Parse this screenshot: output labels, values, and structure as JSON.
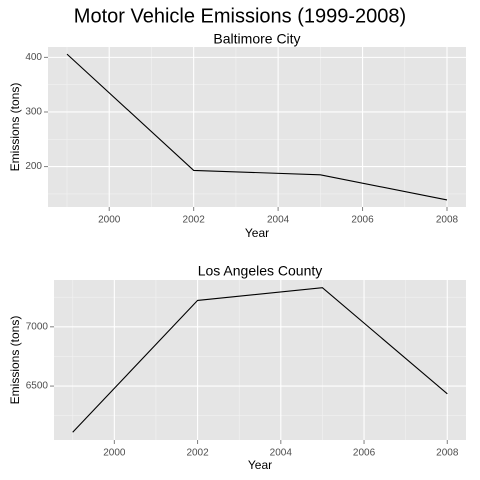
{
  "title": "Motor Vehicle Emissions (1999-2008)",
  "chart_data": [
    {
      "type": "line",
      "title": "Baltimore City",
      "xlabel": "Year",
      "ylabel": "Emissions (tons)",
      "x": [
        1999,
        2002,
        2005,
        2008
      ],
      "series": [
        {
          "values": [
            406,
            193,
            185,
            139
          ]
        }
      ],
      "xlim": [
        1998.55,
        2008.45
      ],
      "ylim": [
        126,
        419
      ],
      "xticks": [
        2000,
        2002,
        2004,
        2006,
        2008
      ],
      "xtick_labels": [
        "2000",
        "2002",
        "2004",
        "2006",
        "2008"
      ],
      "yticks": [
        200,
        300,
        400
      ],
      "ytick_labels": [
        "200",
        "300",
        "400"
      ],
      "grid": true,
      "background": "#e5e5e5",
      "line_color": "#000000"
    },
    {
      "type": "line",
      "title": "Los Angeles County",
      "xlabel": "Year",
      "ylabel": "Emissions (tons)",
      "x": [
        1999,
        2002,
        2005,
        2008
      ],
      "series": [
        {
          "values": [
            6110,
            7223,
            7330,
            6435
          ]
        }
      ],
      "xlim": [
        1998.55,
        2008.45
      ],
      "ylim": [
        6045,
        7395
      ],
      "xticks": [
        2000,
        2002,
        2004,
        2006,
        2008
      ],
      "xtick_labels": [
        "2000",
        "2002",
        "2004",
        "2006",
        "2008"
      ],
      "yticks": [
        6500,
        7000
      ],
      "ytick_labels": [
        "6500",
        "7000"
      ],
      "grid": true,
      "background": "#e5e5e5",
      "line_color": "#000000"
    }
  ]
}
